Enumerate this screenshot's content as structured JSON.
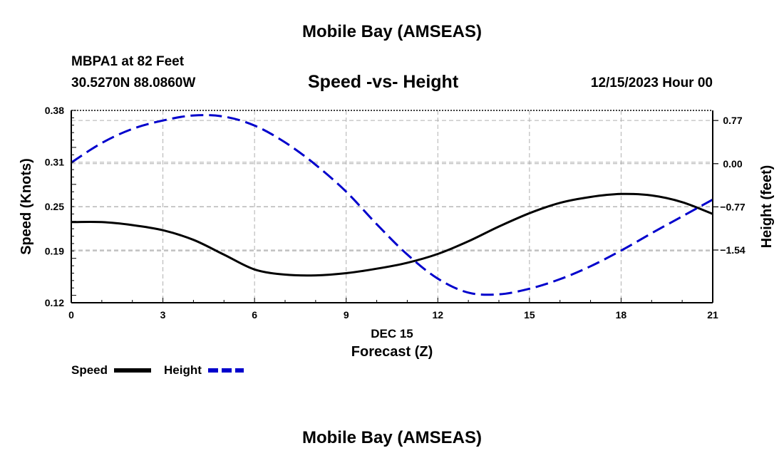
{
  "header": {
    "title": "Mobile Bay (AMSEAS)",
    "station": "MBPA1 at 82 Feet",
    "coords": "30.5270N  88.0860W",
    "date": "12/15/2023 Hour 00"
  },
  "footer": {
    "title": "Mobile Bay (AMSEAS)"
  },
  "chart_data": {
    "type": "line",
    "title": "Speed -vs- Height",
    "xlabel": "Forecast (Z)",
    "xlabel_date": "DEC 15",
    "ylabel": "Speed (Knots)",
    "y2label": "Height (feet)",
    "xlim": [
      0,
      21
    ],
    "ylim": [
      0.12,
      0.38
    ],
    "y2lim": [
      -2.48,
      0.95
    ],
    "xticks": [
      0,
      3,
      6,
      9,
      12,
      15,
      18,
      21
    ],
    "yticks": [
      0.12,
      0.19,
      0.25,
      0.31,
      0.38
    ],
    "ytick_labels": [
      "0.12",
      "0.19",
      "0.25",
      "0.31",
      "0.38"
    ],
    "y2ticks": [
      0.77,
      0.0,
      -0.77,
      -1.54
    ],
    "y2tick_labels": [
      "0.77",
      "0.00",
      "−0.77",
      "−1.54"
    ],
    "grid": true,
    "legend_position": "bottom-left",
    "series": [
      {
        "name": "Speed",
        "axis": "left",
        "color": "#000000",
        "dash": "solid",
        "x": [
          0,
          1,
          2,
          3,
          4,
          5,
          6,
          7,
          8,
          9,
          10,
          11,
          12,
          13,
          14,
          15,
          16,
          17,
          18,
          19,
          20,
          21
        ],
        "values": [
          0.229,
          0.229,
          0.225,
          0.218,
          0.205,
          0.185,
          0.165,
          0.158,
          0.157,
          0.16,
          0.166,
          0.174,
          0.186,
          0.203,
          0.223,
          0.241,
          0.255,
          0.263,
          0.267,
          0.265,
          0.256,
          0.24
        ]
      },
      {
        "name": "Height",
        "axis": "right",
        "color": "#0000cc",
        "dash": "dashed",
        "x": [
          0,
          1,
          2,
          3,
          4,
          5,
          6,
          7,
          8,
          9,
          10,
          11,
          12,
          13,
          14,
          15,
          16,
          17,
          18,
          19,
          20,
          21
        ],
        "values": [
          0.02,
          0.37,
          0.62,
          0.77,
          0.86,
          0.84,
          0.68,
          0.38,
          -0.02,
          -0.5,
          -1.08,
          -1.62,
          -2.05,
          -2.3,
          -2.33,
          -2.23,
          -2.06,
          -1.83,
          -1.55,
          -1.24,
          -0.94,
          -0.64
        ]
      }
    ]
  }
}
